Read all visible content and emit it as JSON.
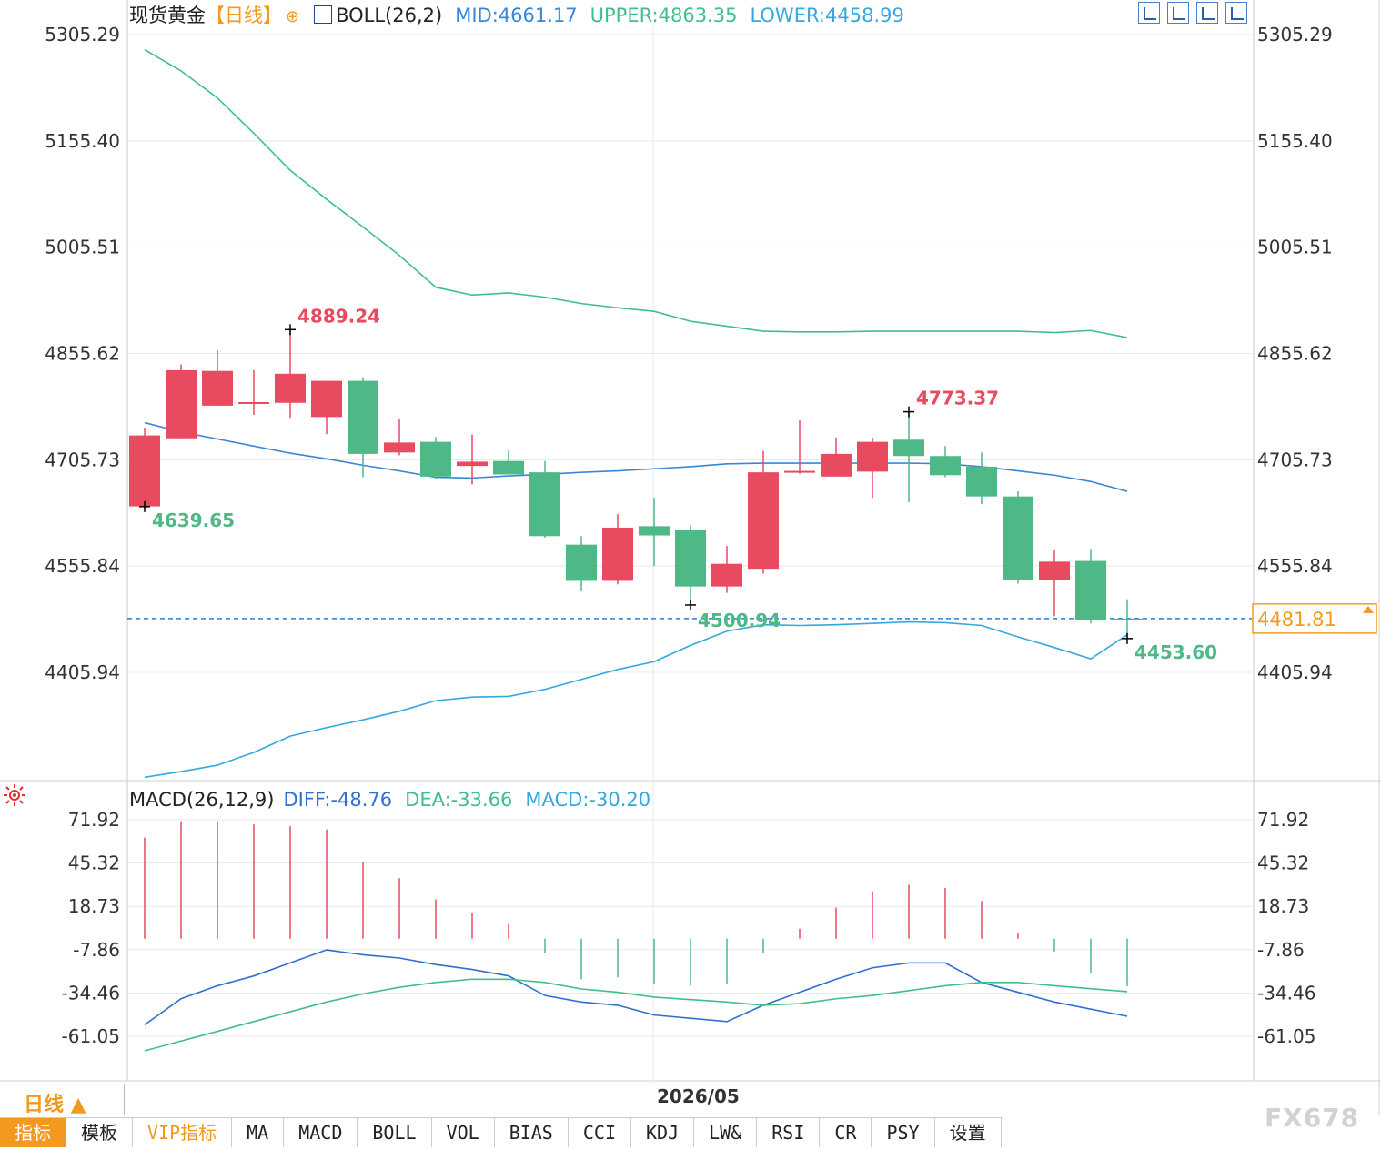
{
  "header": {
    "instrument": "现货黄金",
    "period_tag": "【日线】",
    "indicator": "BOLL(26,2)",
    "mid": "MID:4661.17",
    "upper": "UPPER:4863.35",
    "lower": "LOWER:4458.99"
  },
  "macd_header": {
    "name": "MACD(26,12,9)",
    "diff": "DIFF:-48.76",
    "dea": "DEA:-33.66",
    "macd": "MACD:-30.20"
  },
  "colors": {
    "up": "#e84a5f",
    "down": "#4fb887",
    "upper_band": "#3fc08a",
    "mid_band": "#3a86d8",
    "lower_band": "#35a8e0",
    "price_line": "#2a7fd4",
    "price_box": "#f39a1e",
    "diff_line": "#2f6fd0",
    "dea_line": "#3fbf88",
    "grid": "#e8e8e8"
  },
  "chart_data": [
    {
      "type": "candlestick",
      "title": "现货黄金",
      "ylim": [
        4255,
        5340
      ],
      "y_ticks": [
        "5305.29",
        "5155.40",
        "5005.51",
        "4855.62",
        "4705.73",
        "4555.84",
        "4405.94"
      ],
      "x_label": "2026/05",
      "candles": [
        {
          "o": 4640,
          "h": 4751,
          "l": 4636,
          "c": 4740
        },
        {
          "o": 4736,
          "h": 4840,
          "l": 4736,
          "c": 4832
        },
        {
          "o": 4782,
          "h": 4860,
          "l": 4782,
          "c": 4831
        },
        {
          "o": 4785,
          "h": 4832,
          "l": 4769,
          "c": 4787
        },
        {
          "o": 4786,
          "h": 4889.24,
          "l": 4765,
          "c": 4827
        },
        {
          "o": 4766,
          "h": 4817,
          "l": 4742,
          "c": 4817
        },
        {
          "o": 4817,
          "h": 4822,
          "l": 4681,
          "c": 4714
        },
        {
          "o": 4716,
          "h": 4763,
          "l": 4712,
          "c": 4730
        },
        {
          "o": 4731,
          "h": 4738,
          "l": 4678,
          "c": 4682
        },
        {
          "o": 4697,
          "h": 4741,
          "l": 4671,
          "c": 4703
        },
        {
          "o": 4704,
          "h": 4719,
          "l": 4685,
          "c": 4685
        },
        {
          "o": 4688,
          "h": 4704,
          "l": 4596,
          "c": 4598
        },
        {
          "o": 4586,
          "h": 4598,
          "l": 4520,
          "c": 4535
        },
        {
          "o": 4535,
          "h": 4629,
          "l": 4530,
          "c": 4610
        },
        {
          "o": 4612,
          "h": 4652,
          "l": 4556,
          "c": 4599
        },
        {
          "o": 4607,
          "h": 4613,
          "l": 4500.94,
          "c": 4527
        },
        {
          "o": 4527,
          "h": 4584,
          "l": 4518,
          "c": 4559
        },
        {
          "o": 4552,
          "h": 4718,
          "l": 4545,
          "c": 4688
        },
        {
          "o": 4690,
          "h": 4761,
          "l": 4686,
          "c": 4690
        },
        {
          "o": 4682,
          "h": 4737,
          "l": 4682,
          "c": 4714
        },
        {
          "o": 4689,
          "h": 4737,
          "l": 4652,
          "c": 4731
        },
        {
          "o": 4734,
          "h": 4773.37,
          "l": 4646,
          "c": 4711
        },
        {
          "o": 4711,
          "h": 4725,
          "l": 4681,
          "c": 4684
        },
        {
          "o": 4696,
          "h": 4716,
          "l": 4643,
          "c": 4654
        },
        {
          "o": 4654,
          "h": 4661,
          "l": 4531,
          "c": 4536
        },
        {
          "o": 4536,
          "h": 4579,
          "l": 4485,
          "c": 4562
        },
        {
          "o": 4563,
          "h": 4580,
          "l": 4475,
          "c": 4480
        },
        {
          "o": 4481.81,
          "h": 4509,
          "l": 4453.6,
          "c": 4481.81
        }
      ],
      "boll_upper": [
        5284,
        5254,
        5216,
        5166,
        5114,
        5073,
        5034,
        4994,
        4949,
        4938,
        4941,
        4935,
        4926,
        4920,
        4915,
        4901,
        4894,
        4887,
        4886,
        4886,
        4887,
        4887,
        4887,
        4887,
        4887,
        4885,
        4888,
        4878
      ],
      "boll_mid": [
        4758,
        4745,
        4735,
        4725,
        4715,
        4707,
        4698,
        4690,
        4681,
        4680,
        4683,
        4685,
        4688,
        4690,
        4693,
        4696,
        4700,
        4701,
        4701,
        4701,
        4701,
        4701,
        4700,
        4696,
        4690,
        4684,
        4675,
        4661.17
      ],
      "boll_lower": [
        4258,
        4266,
        4275,
        4293,
        4316,
        4328,
        4339,
        4351,
        4366,
        4371,
        4372,
        4382,
        4396,
        4410,
        4421,
        4444,
        4464,
        4473,
        4472,
        4473,
        4475,
        4477,
        4476,
        4472,
        4456,
        4441,
        4425,
        4458.99
      ],
      "current_price": "4481.81",
      "annotations": [
        "4889.24",
        "4639.65",
        "4773.37",
        "4500.94",
        "4453.60"
      ]
    },
    {
      "type": "bar+line",
      "title": "MACD(26,12,9)",
      "ylim": [
        -74,
        92
      ],
      "y_ticks": [
        "71.92",
        "45.32",
        "18.73",
        "-7.86",
        "-34.46",
        "-61.05"
      ],
      "macd_bars": [
        61,
        71,
        71,
        69,
        68,
        66,
        46,
        36,
        23,
        15,
        8,
        -10,
        -26,
        -25,
        -29,
        -30,
        -29,
        -10,
        5,
        18,
        28,
        32,
        30,
        22,
        2,
        -9,
        -22,
        -30.2
      ],
      "diff": [
        -54,
        -38,
        -30,
        -24,
        -16,
        -8,
        -11,
        -13,
        -17,
        -20,
        -24,
        -36,
        -40,
        -42,
        -48,
        -52,
        -42,
        -34,
        -26,
        -19,
        -16,
        -16,
        -28,
        -34,
        -40,
        -48.76
      ],
      "diff_x_index": [
        0,
        1,
        2,
        3,
        4,
        5,
        6,
        7,
        8,
        9,
        10,
        11,
        12,
        13,
        14,
        16,
        17,
        18,
        19,
        20,
        21,
        22,
        23,
        24,
        25,
        27
      ],
      "dea": [
        -70,
        -64,
        -58,
        -52,
        -46,
        -40,
        -35,
        -31,
        -28,
        -26,
        -26,
        -28,
        -32,
        -34,
        -37,
        -40,
        -42,
        -41,
        -38,
        -36,
        -33,
        -30,
        -28,
        -28,
        -30,
        -33.66
      ]
    }
  ],
  "bottom": {
    "period": "日线 ▲",
    "date": "2026/05",
    "tabs": [
      "指标",
      "模板",
      "VIP指标",
      "MA",
      "MACD",
      "BOLL",
      "VOL",
      "BIAS",
      "CCI",
      "KDJ",
      "LW&",
      "RSI",
      "CR",
      "PSY",
      "设置"
    ],
    "watermark": "FX678"
  }
}
